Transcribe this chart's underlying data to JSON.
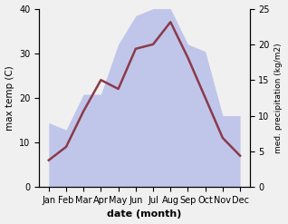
{
  "months": [
    "Jan",
    "Feb",
    "Mar",
    "Apr",
    "May",
    "Jun",
    "Jul",
    "Aug",
    "Sep",
    "Oct",
    "Nov",
    "Dec"
  ],
  "max_temp": [
    6,
    9,
    17,
    24,
    22,
    31,
    32,
    37,
    29,
    20,
    11,
    7
  ],
  "precipitation": [
    9,
    8,
    13,
    13,
    20,
    24,
    25,
    25,
    20,
    19,
    10,
    10
  ],
  "temp_ylim": [
    0,
    40
  ],
  "precip_ylim": [
    0,
    25
  ],
  "temp_color": "#8B3A4A",
  "precip_color": "#b0b8e8",
  "precip_fill_alpha": 0.75,
  "xlabel": "date (month)",
  "ylabel_left": "max temp (C)",
  "ylabel_right": "med. precipitation (kg/m2)",
  "temp_linewidth": 1.8,
  "background_color": "#f0f0f0",
  "yticks_left": [
    0,
    10,
    20,
    30,
    40
  ],
  "yticks_right": [
    0,
    5,
    10,
    15,
    20,
    25
  ]
}
